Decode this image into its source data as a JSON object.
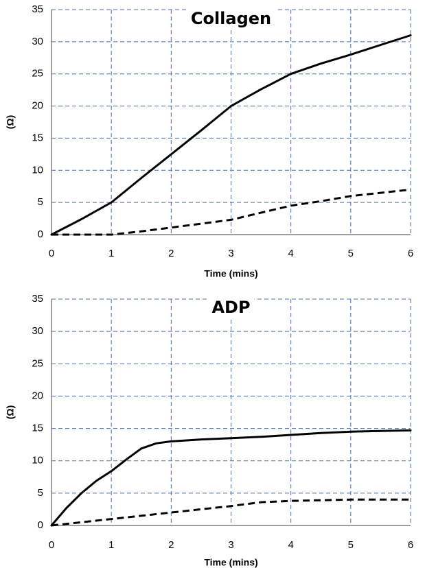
{
  "chart_data": [
    {
      "type": "line",
      "title": "Collagen",
      "xlabel": "Time (mins)",
      "ylabel": "(Ω)",
      "xlim": [
        0,
        6
      ],
      "ylim": [
        0,
        35
      ],
      "x_ticks": [
        "0",
        "1",
        "2",
        "3",
        "4",
        "5",
        "6"
      ],
      "y_ticks": [
        "0",
        "5",
        "10",
        "15",
        "20",
        "25",
        "30",
        "35"
      ],
      "grid": true,
      "series": [
        {
          "style": "solid",
          "x": [
            0,
            0.5,
            1,
            1.5,
            2,
            2.5,
            3,
            3.5,
            4,
            4.5,
            5,
            5.5,
            6
          ],
          "y": [
            0,
            2.4,
            5,
            8.8,
            12.5,
            16.2,
            20,
            22.6,
            25,
            26.6,
            28,
            29.5,
            31
          ]
        },
        {
          "style": "dashed",
          "x": [
            0,
            0.5,
            1,
            1.5,
            2,
            2.5,
            3,
            3.5,
            4,
            4.5,
            5,
            5.5,
            6
          ],
          "y": [
            0,
            0,
            0,
            0.5,
            1.1,
            1.7,
            2.3,
            3.4,
            4.5,
            5.2,
            6,
            6.5,
            7
          ]
        }
      ]
    },
    {
      "type": "line",
      "title": "ADP",
      "xlabel": "Time (mins)",
      "ylabel": "(Ω)",
      "xlim": [
        0,
        6
      ],
      "ylim": [
        0,
        35
      ],
      "x_ticks": [
        "0",
        "1",
        "2",
        "3",
        "4",
        "5",
        "6"
      ],
      "y_ticks": [
        "0",
        "5",
        "10",
        "15",
        "20",
        "25",
        "30",
        "35"
      ],
      "grid": true,
      "series": [
        {
          "style": "solid",
          "x": [
            0,
            0.25,
            0.5,
            0.75,
            1,
            1.25,
            1.5,
            1.75,
            2,
            2.5,
            3,
            3.5,
            4,
            4.5,
            5,
            5.5,
            6
          ],
          "y": [
            0,
            2.7,
            5,
            6.9,
            8.4,
            10.2,
            11.9,
            12.7,
            13,
            13.3,
            13.5,
            13.7,
            14,
            14.3,
            14.5,
            14.6,
            14.7
          ]
        },
        {
          "style": "dashed",
          "x": [
            0,
            0.5,
            1,
            1.5,
            2,
            2.5,
            3,
            3.5,
            4,
            4.5,
            5,
            5.5,
            6
          ],
          "y": [
            0,
            0.5,
            1,
            1.5,
            2,
            2.5,
            3,
            3.6,
            3.8,
            3.9,
            4,
            4,
            4
          ]
        }
      ]
    }
  ]
}
